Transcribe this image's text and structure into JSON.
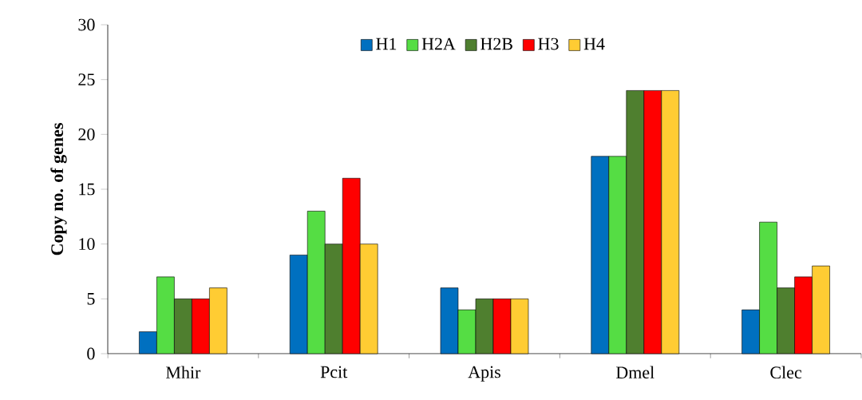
{
  "chart_data": {
    "type": "bar",
    "ylabel": "Copy no. of genes",
    "categories": [
      "Mhir",
      "Pcit",
      "Apis",
      "Dmel",
      "Clec"
    ],
    "series": [
      {
        "name": "H1",
        "color": "#0070c0",
        "values": [
          2,
          9,
          6,
          18,
          4
        ]
      },
      {
        "name": "H2A",
        "color": "#55dd44",
        "values": [
          7,
          13,
          4,
          18,
          12
        ]
      },
      {
        "name": "H2B",
        "color": "#4f7f2f",
        "values": [
          5,
          10,
          5,
          24,
          6
        ]
      },
      {
        "name": "H3",
        "color": "#ff0000",
        "values": [
          5,
          16,
          5,
          24,
          7
        ]
      },
      {
        "name": "H4",
        "color": "#ffcc33",
        "values": [
          6,
          10,
          5,
          24,
          8
        ]
      }
    ],
    "ylim": [
      0,
      30
    ],
    "yticks": [
      0,
      5,
      10,
      15,
      20,
      25,
      30
    ],
    "grid": false,
    "legend": "top"
  }
}
